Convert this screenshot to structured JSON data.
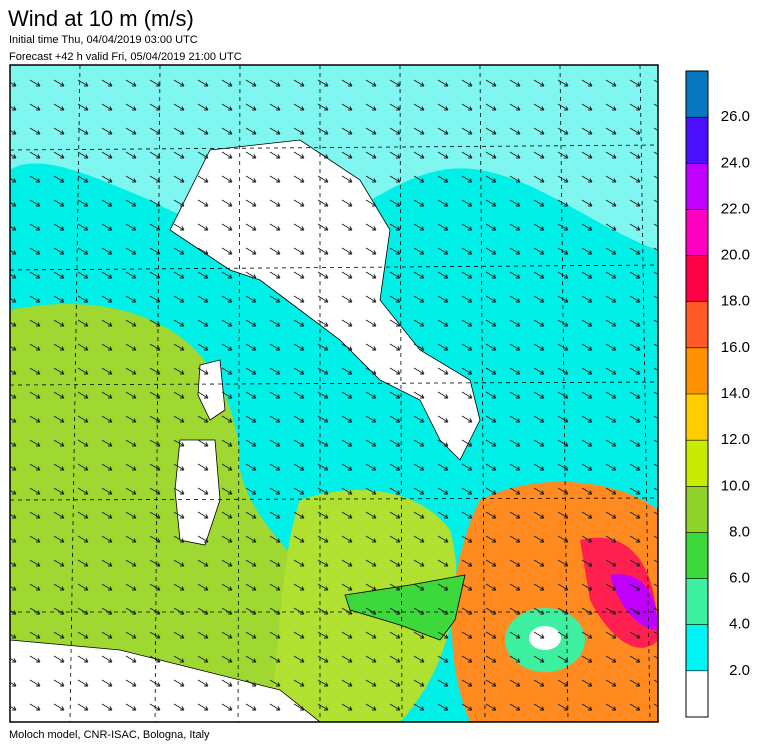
{
  "header": {
    "title": "Wind at 10 m (m/s)",
    "initial_time": "Initial time  Thu, 04/04/2019 03:00 UTC",
    "forecast": "Forecast +42 h valid  Fri, 05/04/2019 21:00 UTC"
  },
  "colorbar": {
    "colors": [
      "#ffffff",
      "#00f4f4",
      "#3cf0a0",
      "#3cd83c",
      "#8fd228",
      "#c8ec00",
      "#ffcc00",
      "#ff9000",
      "#ff5a28",
      "#ff0046",
      "#ff00c0",
      "#c000ff",
      "#4a10ff",
      "#0878c0"
    ],
    "labels": [
      "2.0",
      "4.0",
      "6.0",
      "8.0",
      "10.0",
      "12.0",
      "14.0",
      "16.0",
      "18.0",
      "20.0",
      "22.0",
      "24.0",
      "26.0"
    ]
  },
  "footer": "Moloch model, CNR-ISAC, Bologna, Italy"
}
